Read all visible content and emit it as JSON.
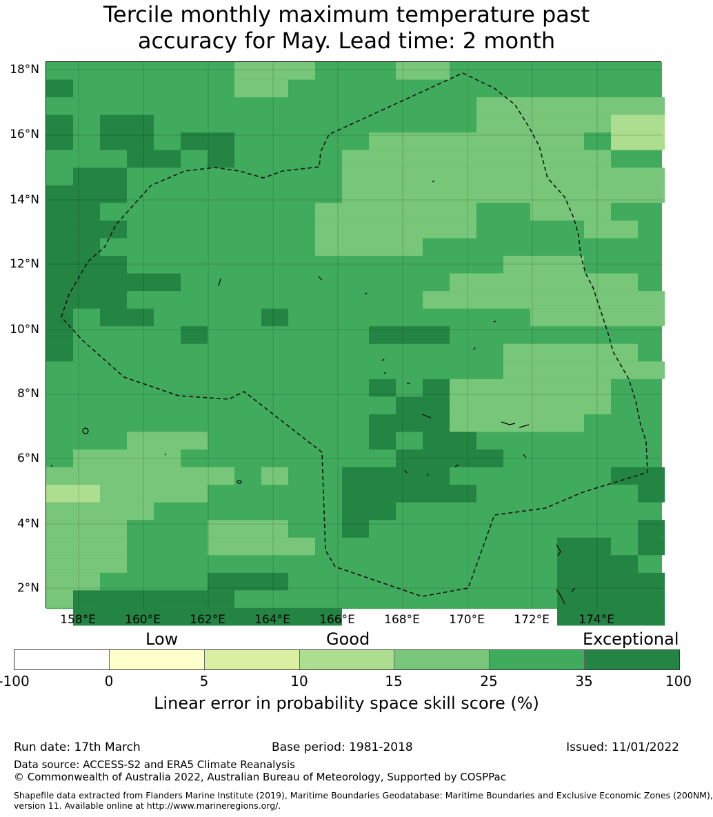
{
  "title": {
    "line1": "Tercile monthly maximum temperature past",
    "line2": "accuracy for May. Lead time: 2 month"
  },
  "map": {
    "lat_ticks": [
      "18°N",
      "16°N",
      "14°N",
      "12°N",
      "10°N",
      "8°N",
      "6°N",
      "4°N",
      "2°N"
    ],
    "lon_ticks": [
      "158°E",
      "160°E",
      "162°E",
      "164°E",
      "166°E",
      "168°E",
      "170°E",
      "172°E",
      "174°E"
    ],
    "colors": {
      "c_0_5": "#ffffcc",
      "c_5_10": "#d9f0a3",
      "c_10_15": "#addd8e",
      "c_15_25": "#78c679",
      "c_25_35": "#41ab5d",
      "c_35_100": "#238443",
      "below_0": "#ffffff"
    }
  },
  "legend": {
    "categories": [
      "Low",
      "Good",
      "Exceptional"
    ],
    "ticks": [
      "-100",
      "0",
      "5",
      "10",
      "15",
      "25",
      "35",
      "100"
    ],
    "label": "Linear error in probability space skill score (%)"
  },
  "footer": {
    "run_date": "Run date: 17th March",
    "base_period": "Base period: 1981-2018",
    "issued": "Issued: 11/01/2022",
    "data_source": "Data source: ACCESS-S2 and ERA5 Climate Reanalysis",
    "copyright": "© Commonwealth of Australia 2022, Australian Bureau of Meteorology, Supported by COSPPac",
    "shapefile_line1": "Shapefile data extracted from Flanders Marine Institute (2019), Maritime Boundaries Geodatabase: Maritime Boundaries and Exclusive Economic Zones (200NM),",
    "shapefile_line2": "version 11. Available online at http://www.marineregions.org/."
  }
}
